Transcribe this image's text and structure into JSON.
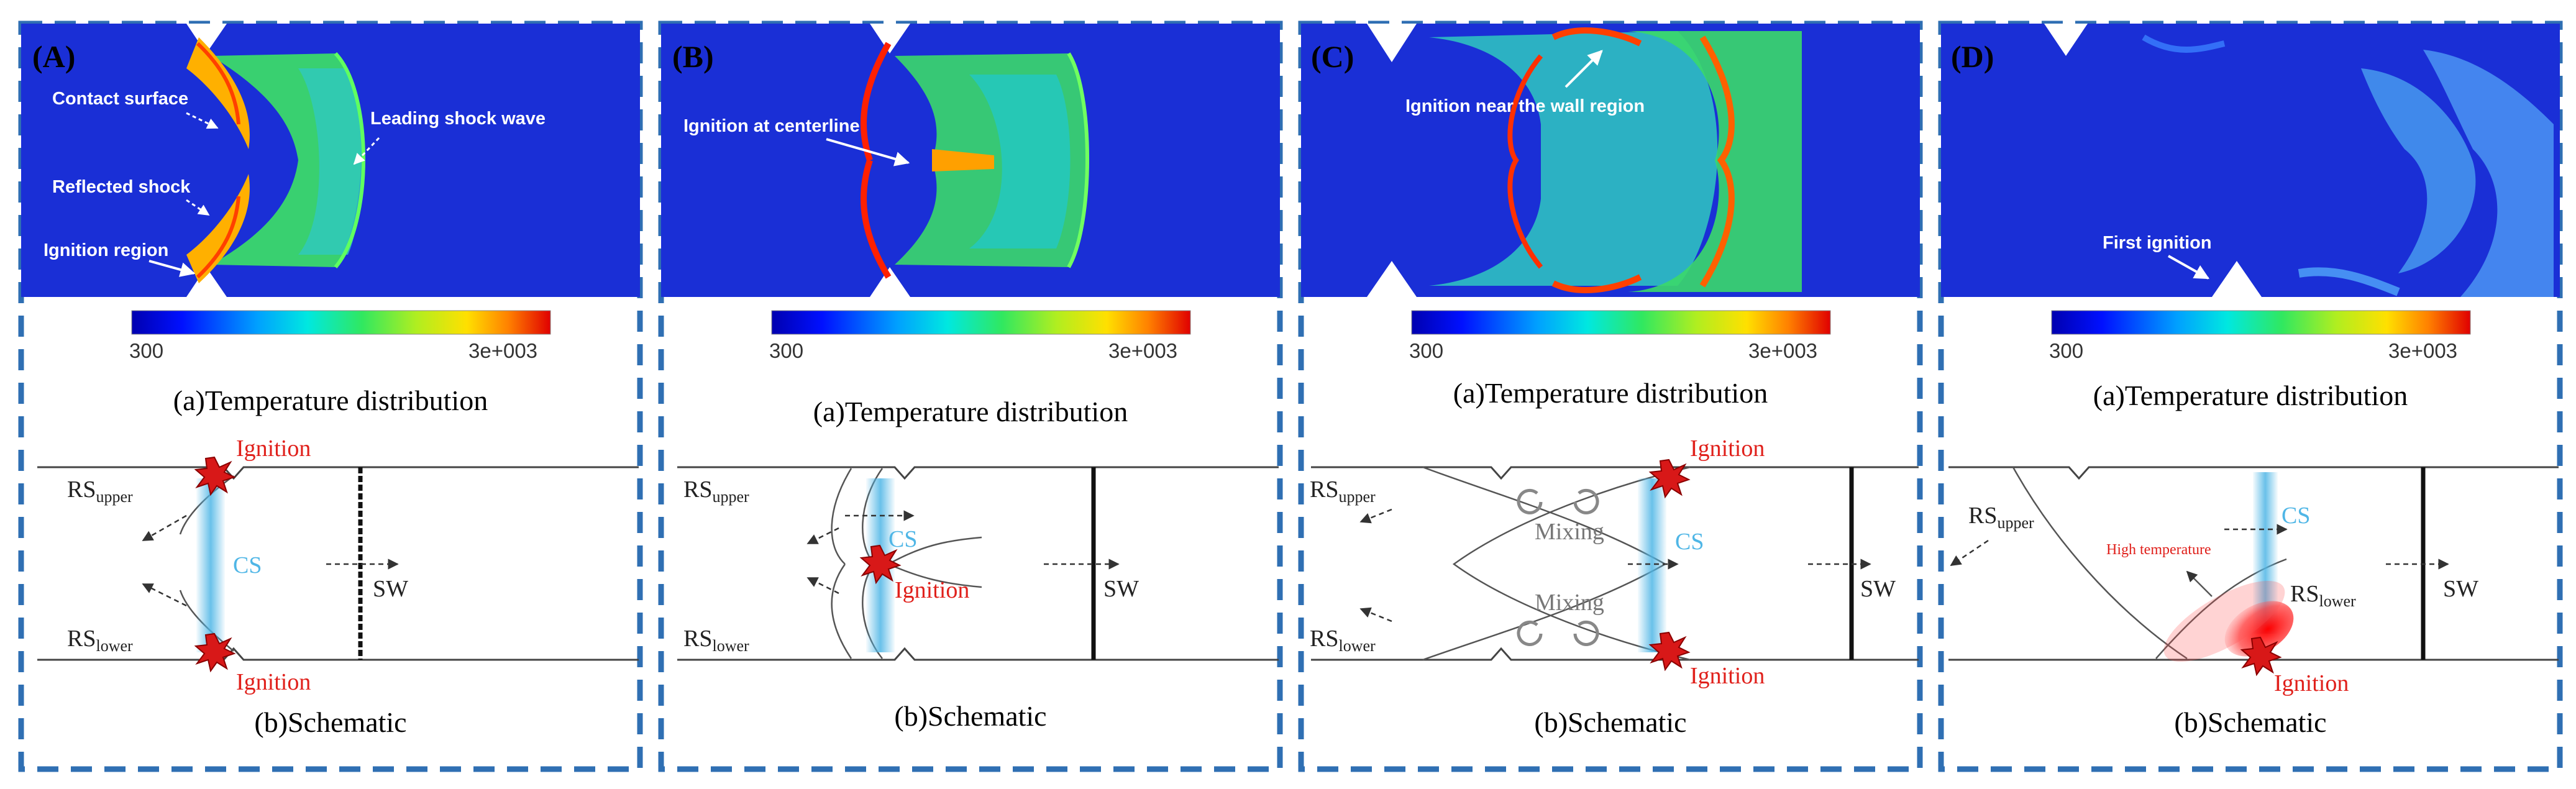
{
  "panels": [
    {
      "label": "(A)",
      "annotations": [
        "Contact surface",
        "Leading shock wave",
        "Reflected shock",
        "Ignition region"
      ],
      "colorbar": {
        "min": "300",
        "max": "3e+003"
      },
      "caption_a": "(a)Temperature distribution",
      "schematic": {
        "ignition_top": "Ignition",
        "ignition_bottom": "Ignition",
        "cs": "CS",
        "sw": "SW",
        "rs_upper": "RS",
        "rs_upper_sub": "upper",
        "rs_lower": "RS",
        "rs_lower_sub": "lower"
      },
      "caption_b": "(b)Schematic"
    },
    {
      "label": "(B)",
      "annotations": [
        "Ignition at centerline"
      ],
      "colorbar": {
        "min": "300",
        "max": "3e+003"
      },
      "caption_a": "(a)Temperature distribution",
      "schematic": {
        "ignition": "Ignition",
        "cs": "CS",
        "sw": "SW",
        "rs_upper": "RS",
        "rs_upper_sub": "upper",
        "rs_lower": "RS",
        "rs_lower_sub": "lower"
      },
      "caption_b": "(b)Schematic"
    },
    {
      "label": "(C)",
      "annotations": [
        "Ignition near the wall region"
      ],
      "colorbar": {
        "min": "300",
        "max": "3e+003"
      },
      "caption_a": "(a)Temperature distribution",
      "schematic": {
        "ignition_top": "Ignition",
        "ignition_bottom": "Ignition",
        "mixing_top": "Mixing",
        "mixing_bottom": "Mixing",
        "cs": "CS",
        "sw": "SW",
        "rs_upper": "RS",
        "rs_upper_sub": "upper",
        "rs_lower": "RS",
        "rs_lower_sub": "lower"
      },
      "caption_b": "(b)Schematic"
    },
    {
      "label": "(D)",
      "annotations": [
        "First ignition"
      ],
      "colorbar": {
        "min": "300",
        "max": "3e+003"
      },
      "caption_a": "(a)Temperature distribution",
      "schematic": {
        "ignition": "Ignition",
        "high_temp": "High temperature",
        "cs": "CS",
        "sw": "SW",
        "rs_upper": "RS",
        "rs_upper_sub": "upper",
        "rs_lower": "RS",
        "rs_lower_sub": "lower"
      },
      "caption_b": "(b)Schematic"
    }
  ],
  "colors": {
    "frame": "#2f6fb3",
    "field_bg": "#1a2fd6",
    "ignition": "#e0201b",
    "cs": "#4fb6e6"
  }
}
